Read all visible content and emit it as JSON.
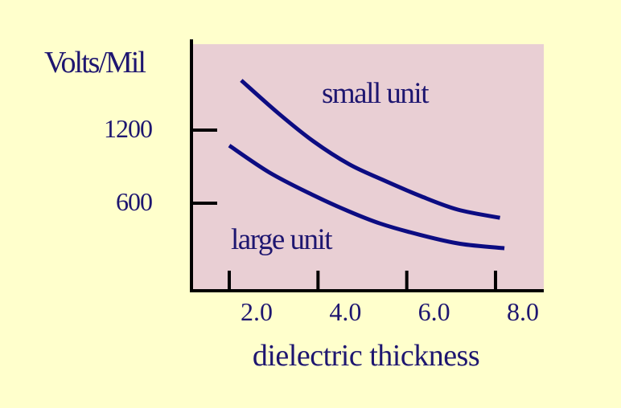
{
  "chart_data": {
    "type": "line",
    "ylabel": "Volts/Mil",
    "xlabel": "dielectric thickness",
    "x_ticks": [
      "2.0",
      "4.0",
      "6.0",
      "8.0"
    ],
    "y_ticks": [
      "600",
      "1200"
    ],
    "xlim": [
      1.1,
      9.1
    ],
    "ylim": [
      -110,
      1900
    ],
    "grid": false,
    "series": [
      {
        "name": "small unit",
        "x": [
          2.27,
          3.1,
          3.9,
          4.7,
          5.45,
          6.3,
          7.15,
          8.1
        ],
        "y": [
          1608,
          1340,
          1107,
          920,
          793,
          660,
          547,
          480
        ]
      },
      {
        "name": "large unit",
        "x": [
          2.0,
          2.9,
          3.85,
          4.65,
          5.4,
          6.3,
          7.2,
          8.2
        ],
        "y": [
          1073,
          853,
          673,
          540,
          433,
          340,
          267,
          230
        ]
      }
    ],
    "colors": {
      "background": "#FFFFCC",
      "plot_area": "#E9CFD4",
      "line": "#0C0C82",
      "text": "#1E1670"
    }
  }
}
